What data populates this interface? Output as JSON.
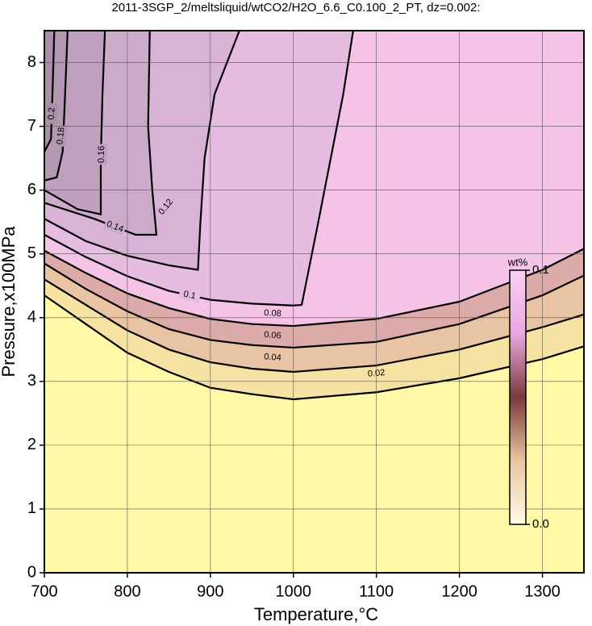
{
  "chart_data": {
    "type": "contour",
    "title": "2011-3SGP_2/meltsliquid/wtCO2/H2O_6.6_C0.100_2_PT, dz=0.002:",
    "xlabel": "Temperature,°C",
    "ylabel": "Pressure,x100MPa",
    "xlim": [
      700,
      1350
    ],
    "ylim": [
      0,
      8.5
    ],
    "xticks": [
      700,
      800,
      900,
      1000,
      1100,
      1200,
      1300
    ],
    "yticks": [
      0,
      1,
      2,
      3,
      4,
      5,
      6,
      7,
      8
    ],
    "grid": true,
    "background": "#fff9a8",
    "series": [
      {
        "level": 0.02,
        "color": "#f6e3a4",
        "x": [
          700,
          750,
          800,
          850,
          900,
          950,
          1000,
          1100,
          1200,
          1300,
          1350
        ],
        "values": [
          4.35,
          3.9,
          3.45,
          3.15,
          2.9,
          2.8,
          2.72,
          2.83,
          3.05,
          3.35,
          3.55
        ]
      },
      {
        "level": 0.04,
        "color": "#e9c4a4",
        "x": [
          700,
          750,
          800,
          850,
          900,
          950,
          1000,
          1100,
          1200,
          1300,
          1350
        ],
        "values": [
          4.6,
          4.2,
          3.8,
          3.5,
          3.3,
          3.2,
          3.15,
          3.25,
          3.5,
          3.85,
          4.05
        ]
      },
      {
        "level": 0.06,
        "color": "#dcaaa8",
        "x": [
          700,
          750,
          800,
          850,
          900,
          950,
          1000,
          1100,
          1200,
          1300,
          1350
        ],
        "values": [
          4.85,
          4.45,
          4.1,
          3.82,
          3.65,
          3.57,
          3.53,
          3.62,
          3.9,
          4.35,
          4.66
        ]
      },
      {
        "level": 0.08,
        "color": "#f5c3e6",
        "x": [
          700,
          750,
          800,
          850,
          900,
          950,
          1000,
          1100,
          1200,
          1300,
          1350
        ],
        "values": [
          5.05,
          4.7,
          4.38,
          4.15,
          3.98,
          3.9,
          3.87,
          3.98,
          4.25,
          4.75,
          5.08
        ]
      },
      {
        "level": 0.1,
        "color": "#e6bde0",
        "x": [
          700,
          750,
          800,
          850,
          900,
          950,
          1000,
          1010,
          1030,
          1060,
          1072
        ],
        "values": [
          5.3,
          4.95,
          4.65,
          4.42,
          4.28,
          4.22,
          4.19,
          4.2,
          5.5,
          7.5,
          8.5
        ]
      },
      {
        "level": 0.12,
        "color": "#d9b3d6",
        "x": [
          700,
          750,
          800,
          850,
          885,
          888,
          893,
          905,
          935
        ],
        "values": [
          5.55,
          5.2,
          4.97,
          4.82,
          4.75,
          5.5,
          6.5,
          7.5,
          8.5
        ]
      },
      {
        "level": 0.14,
        "color": "#ccaaca",
        "x": [
          700,
          760,
          810,
          835,
          830,
          825,
          827
        ],
        "values": [
          5.8,
          5.55,
          5.3,
          5.3,
          6,
          7,
          8.5
        ]
      },
      {
        "level": 0.16,
        "color": "#bfa0be",
        "x": [
          700,
          740,
          768,
          768,
          770,
          773
        ],
        "values": [
          6.0,
          5.7,
          5.62,
          6.5,
          7.5,
          8.5
        ]
      },
      {
        "level": 0.18,
        "color": "#b398b2",
        "x": [
          700,
          715,
          722,
          725,
          728
        ],
        "values": [
          6.15,
          6.2,
          6.6,
          7.5,
          8.5
        ]
      },
      {
        "level": 0.2,
        "color": "#a890a8",
        "x": [
          700,
          708,
          710,
          712
        ],
        "values": [
          6.6,
          6.8,
          7.6,
          8.5
        ]
      }
    ],
    "colorbar": {
      "label": "wt%",
      "clim": [
        0,
        0.1
      ],
      "ticks": [
        {
          "value": 0,
          "label": "0.0"
        },
        0.1
      ],
      "colors": [
        "#fffce8",
        "#e8c6a0",
        "#7a3a3a",
        "#e8a8e0",
        "#f8d0f4"
      ]
    }
  }
}
